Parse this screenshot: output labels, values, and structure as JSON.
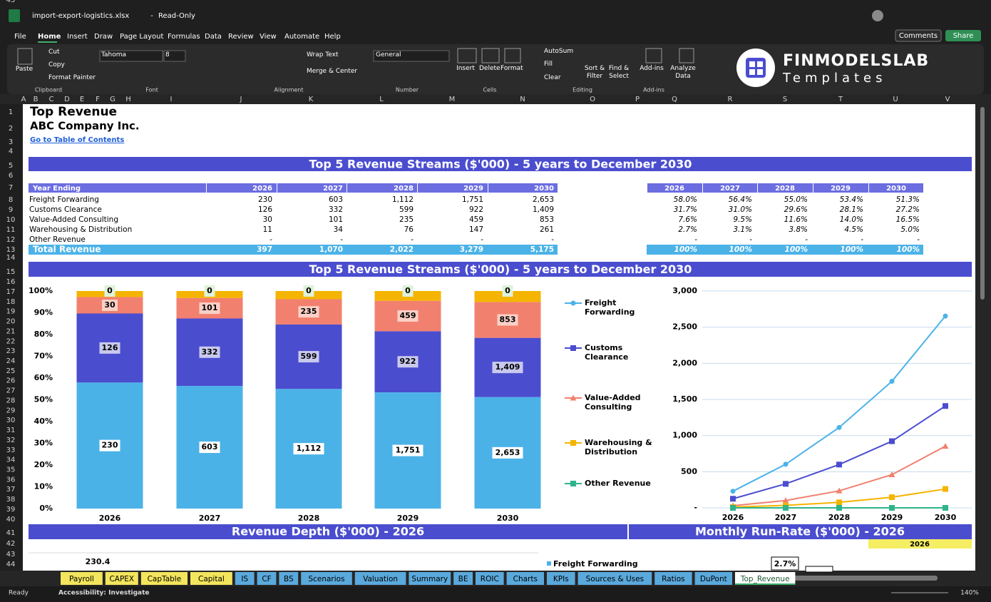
{
  "window": {
    "file_name": "import-export-logistics.xlsx",
    "separator": "-",
    "mode": "Read-Only"
  },
  "menu": [
    "File",
    "Home",
    "Insert",
    "Draw",
    "Page Layout",
    "Formulas",
    "Data",
    "Review",
    "View",
    "Automate",
    "Help"
  ],
  "buttons": {
    "comments": "Comments",
    "share": "Share"
  },
  "ribbon": [
    "Paste",
    "Cut",
    "Copy",
    "Format Painter",
    "Tahoma",
    "8",
    "Wrap Text",
    "Merge & Center",
    "General",
    "Insert",
    "Delete",
    "Format",
    "AutoSum",
    "Fill",
    "Clear",
    "Sort & Filter",
    "Find & Select",
    "Add-ins",
    "Analyze Data"
  ],
  "ribbon_groups": [
    "Clipboard",
    "Font",
    "Alignment",
    "Number",
    "Cells",
    "Editing",
    "Add-ins"
  ],
  "logo": {
    "name": "FINMODELSLAB",
    "tagline": "Templates"
  },
  "columns": [
    "A",
    "B",
    "C",
    "D",
    "E",
    "F",
    "G",
    "H",
    "I",
    "J",
    "K",
    "L",
    "M",
    "N",
    "O",
    "P",
    "Q",
    "R",
    "S",
    "T",
    "U",
    "V"
  ],
  "rows": [
    1,
    2,
    3,
    4,
    5,
    6,
    7,
    8,
    9,
    10,
    11,
    12,
    13,
    14,
    15,
    16,
    17,
    18,
    19,
    20,
    21,
    22,
    23,
    24,
    25,
    26,
    27,
    28,
    29,
    30,
    31,
    32,
    33,
    34,
    35,
    36,
    37,
    38,
    39,
    40,
    41,
    42,
    43,
    44,
    45
  ],
  "sheet": {
    "title": "Top Revenue",
    "company": "ABC Company Inc.",
    "link": "Go to Table of Contents",
    "banner": "Top 5 Revenue Streams ($'000) - 5 years to December 2030"
  },
  "revenue_table": {
    "header": [
      "Year Ending",
      "2026",
      "2027",
      "2028",
      "2029",
      "2030"
    ],
    "rows": [
      [
        "Freight Forwarding",
        "230",
        "603",
        "1,112",
        "1,751",
        "2,653"
      ],
      [
        "Customs Clearance",
        "126",
        "332",
        "599",
        "922",
        "1,409"
      ],
      [
        "Value-Added Consulting",
        "30",
        "101",
        "235",
        "459",
        "853"
      ],
      [
        "Warehousing & Distribution",
        "11",
        "34",
        "76",
        "147",
        "261"
      ],
      [
        "Other Revenue",
        "-",
        "-",
        "-",
        "-",
        "-"
      ]
    ],
    "total": [
      "Total Revenue",
      "397",
      "1,070",
      "2,022",
      "3,279",
      "5,175"
    ]
  },
  "share_table": {
    "header": [
      "2026",
      "2027",
      "2028",
      "2029",
      "2030"
    ],
    "rows": [
      [
        "58.0%",
        "56.4%",
        "55.0%",
        "53.4%",
        "51.3%"
      ],
      [
        "31.7%",
        "31.0%",
        "29.6%",
        "28.1%",
        "27.2%"
      ],
      [
        "7.6%",
        "9.5%",
        "11.6%",
        "14.0%",
        "16.5%"
      ],
      [
        "2.7%",
        "3.1%",
        "3.8%",
        "4.5%",
        "5.0%"
      ],
      [
        "-",
        "-",
        "-",
        "-",
        "-"
      ]
    ],
    "total": [
      "100%",
      "100%",
      "100%",
      "100%",
      "100%"
    ]
  },
  "chart_data": [
    {
      "type": "bar",
      "stacking": "percent",
      "grid": false,
      "categories": [
        "2026",
        "2027",
        "2028",
        "2029",
        "2030"
      ],
      "ylim": [
        0,
        100
      ],
      "yticks": [
        {
          "value": 0,
          "label": "0%"
        },
        {
          "value": 10,
          "label": "10%"
        },
        {
          "value": 20,
          "label": "20%"
        },
        {
          "value": 30,
          "label": "30%"
        },
        {
          "value": 40,
          "label": "40%"
        },
        {
          "value": 50,
          "label": "50%"
        },
        {
          "value": 60,
          "label": "60%"
        },
        {
          "value": 70,
          "label": "70%"
        },
        {
          "value": 80,
          "label": "80%"
        },
        {
          "value": 90,
          "label": "90%"
        },
        {
          "value": 100,
          "label": "100%"
        }
      ],
      "series": [
        {
          "name": "Freight Forwarding",
          "color": "#4bb2e8",
          "values": [
            230,
            603,
            1112,
            1751,
            2653
          ],
          "value_labels": [
            "230",
            "603",
            "1,112",
            "1,751",
            "2,653"
          ]
        },
        {
          "name": "Customs Clearance",
          "color": "#4b4dcf",
          "values": [
            126,
            332,
            599,
            922,
            1409
          ],
          "value_labels": [
            "126",
            "332",
            "599",
            "922",
            "1,409"
          ]
        },
        {
          "name": "Value-Added Consulting",
          "color": "#f2806f",
          "values": [
            30,
            101,
            235,
            459,
            853
          ]
        },
        {
          "name": "Warehousing & Distribution",
          "color": "#f5b400",
          "values": [
            11,
            34,
            76,
            147,
            261
          ],
          "data_labels": false
        },
        {
          "name": "Other Revenue",
          "color": "#2fb38a",
          "values": [
            0,
            0,
            0,
            0,
            0
          ]
        }
      ]
    },
    {
      "type": "line",
      "grid": true,
      "legend": "left",
      "categories": [
        "2026",
        "2027",
        "2028",
        "2029",
        "2030"
      ],
      "ylim": [
        0,
        3000
      ],
      "yticks": [
        {
          "value": 0,
          "label": "-"
        },
        500,
        {
          "value": 1000,
          "label": "1,000"
        },
        {
          "value": 1500,
          "label": "1,500"
        },
        {
          "value": 2000,
          "label": "2,000"
        },
        {
          "value": 2500,
          "label": "2,500"
        },
        {
          "value": 3000,
          "label": "3,000"
        }
      ],
      "series": [
        {
          "name": "Freight Forwarding",
          "color": "#4bb2e8",
          "marker": "circle",
          "values": [
            230,
            603,
            1112,
            1751,
            2653
          ]
        },
        {
          "name": "Customs Clearance",
          "color": "#4b4dcf",
          "marker": "square",
          "values": [
            126,
            332,
            599,
            922,
            1409
          ]
        },
        {
          "name": "Value-Added Consulting",
          "color": "#f2806f",
          "marker": "triangle",
          "values": [
            30,
            101,
            235,
            459,
            853
          ]
        },
        {
          "name": "Warehousing & Distribution",
          "color": "#f5b400",
          "marker": "square",
          "values": [
            11,
            34,
            76,
            147,
            261
          ]
        },
        {
          "name": "Other Revenue",
          "color": "#2fb38a",
          "marker": "square",
          "values": [
            0,
            0,
            0,
            0,
            0
          ]
        }
      ]
    }
  ],
  "lower": {
    "depth_title": "Revenue Depth ($'000) - 2026",
    "runrate_title": "Monthly Run-Rate ($'000) - 2026",
    "year": "2026",
    "depth_value": "230.4",
    "legend": "Freight Forwarding",
    "share": "2.7%"
  },
  "sheet_tabs": [
    {
      "label": "Payroll",
      "color": "#f3e55c"
    },
    {
      "label": "CAPEX",
      "color": "#f3e55c"
    },
    {
      "label": "CapTable",
      "color": "#f3e55c"
    },
    {
      "label": "Capital",
      "color": "#f3e55c"
    },
    {
      "label": "IS",
      "color": "#5aa9dc"
    },
    {
      "label": "CF",
      "color": "#5aa9dc"
    },
    {
      "label": "BS",
      "color": "#5aa9dc"
    },
    {
      "label": "Scenarios",
      "color": "#5aa9dc"
    },
    {
      "label": "Valuation",
      "color": "#5aa9dc"
    },
    {
      "label": "Summary",
      "color": "#5aa9dc"
    },
    {
      "label": "BE",
      "color": "#5aa9dc"
    },
    {
      "label": "ROIC",
      "color": "#5aa9dc"
    },
    {
      "label": "Charts",
      "color": "#5aa9dc"
    },
    {
      "label": "KPIs",
      "color": "#5aa9dc"
    },
    {
      "label": "Sources & Uses",
      "color": "#5aa9dc"
    },
    {
      "label": "Ratios",
      "color": "#5aa9dc"
    },
    {
      "label": "DuPont",
      "color": "#5aa9dc"
    },
    {
      "label": "Top_Revenue",
      "color": "#ffffff"
    }
  ],
  "status": {
    "ready": "Ready",
    "accessibility": "Accessibility: Investigate",
    "zoom": "140%"
  }
}
